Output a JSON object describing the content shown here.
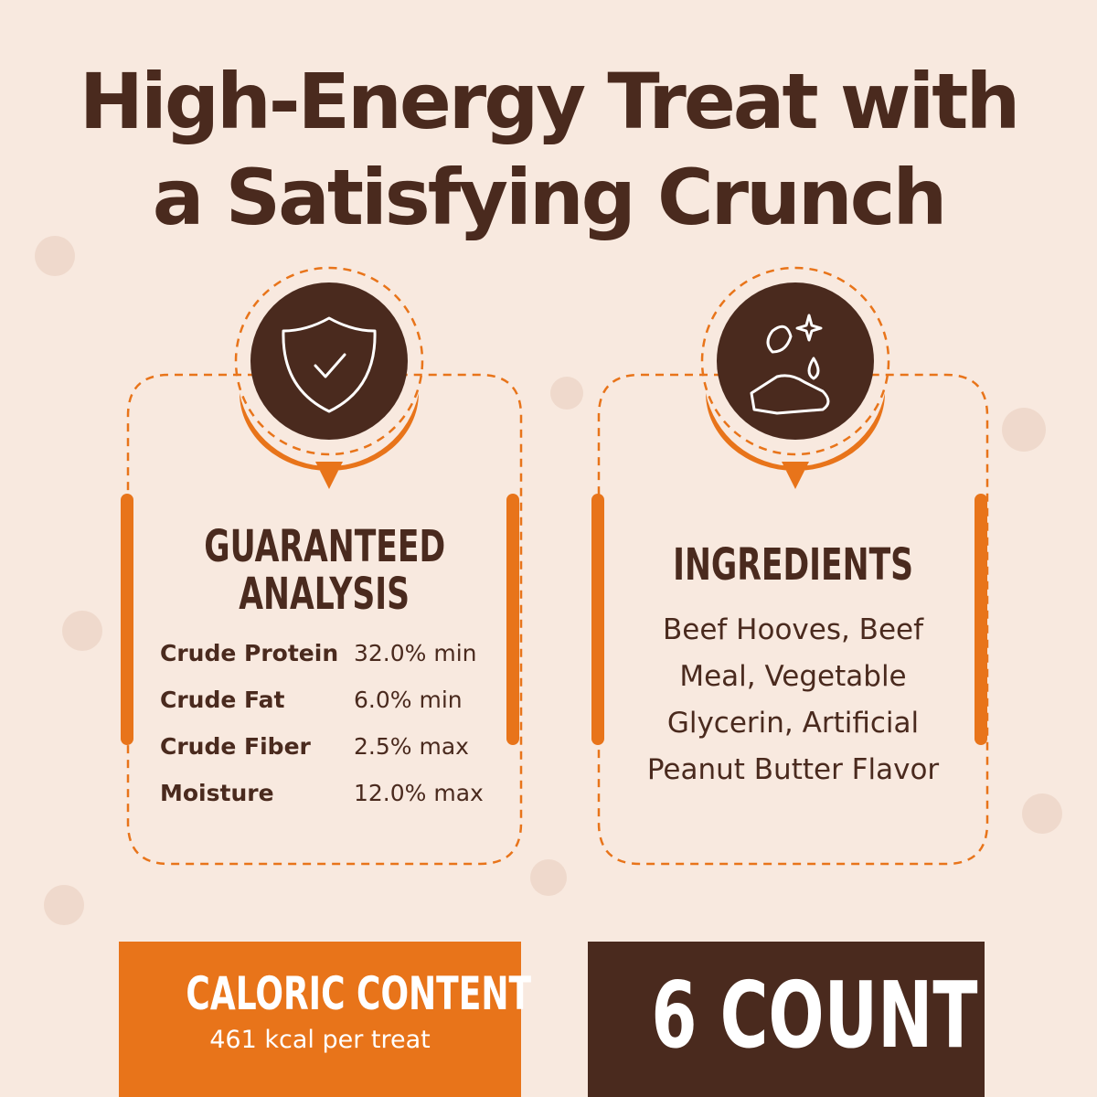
{
  "header": {
    "title_lines": [
      "High-Energy Treat with",
      "a Satisfying Crunch"
    ]
  },
  "analysis": {
    "title_lines": [
      "GUARANTEED",
      "ANALYSIS"
    ],
    "rows": [
      [
        "Crude Protein",
        "32.0% min"
      ],
      [
        "Crude Fat",
        "6.0% min"
      ],
      [
        "Crude Fiber",
        "2.5% max"
      ],
      [
        "Moisture",
        "12.0% max"
      ]
    ]
  },
  "ingredients": {
    "title": "INGREDIENTS",
    "text": "Beef Hooves, Beef Meal, Vegetable Glycerin, Artificial Peanut Butter Flavor"
  },
  "caloric": {
    "title": "CALORIC CONTENT",
    "text": "461 kcal per treat"
  },
  "count": {
    "text": "6 COUNT"
  }
}
